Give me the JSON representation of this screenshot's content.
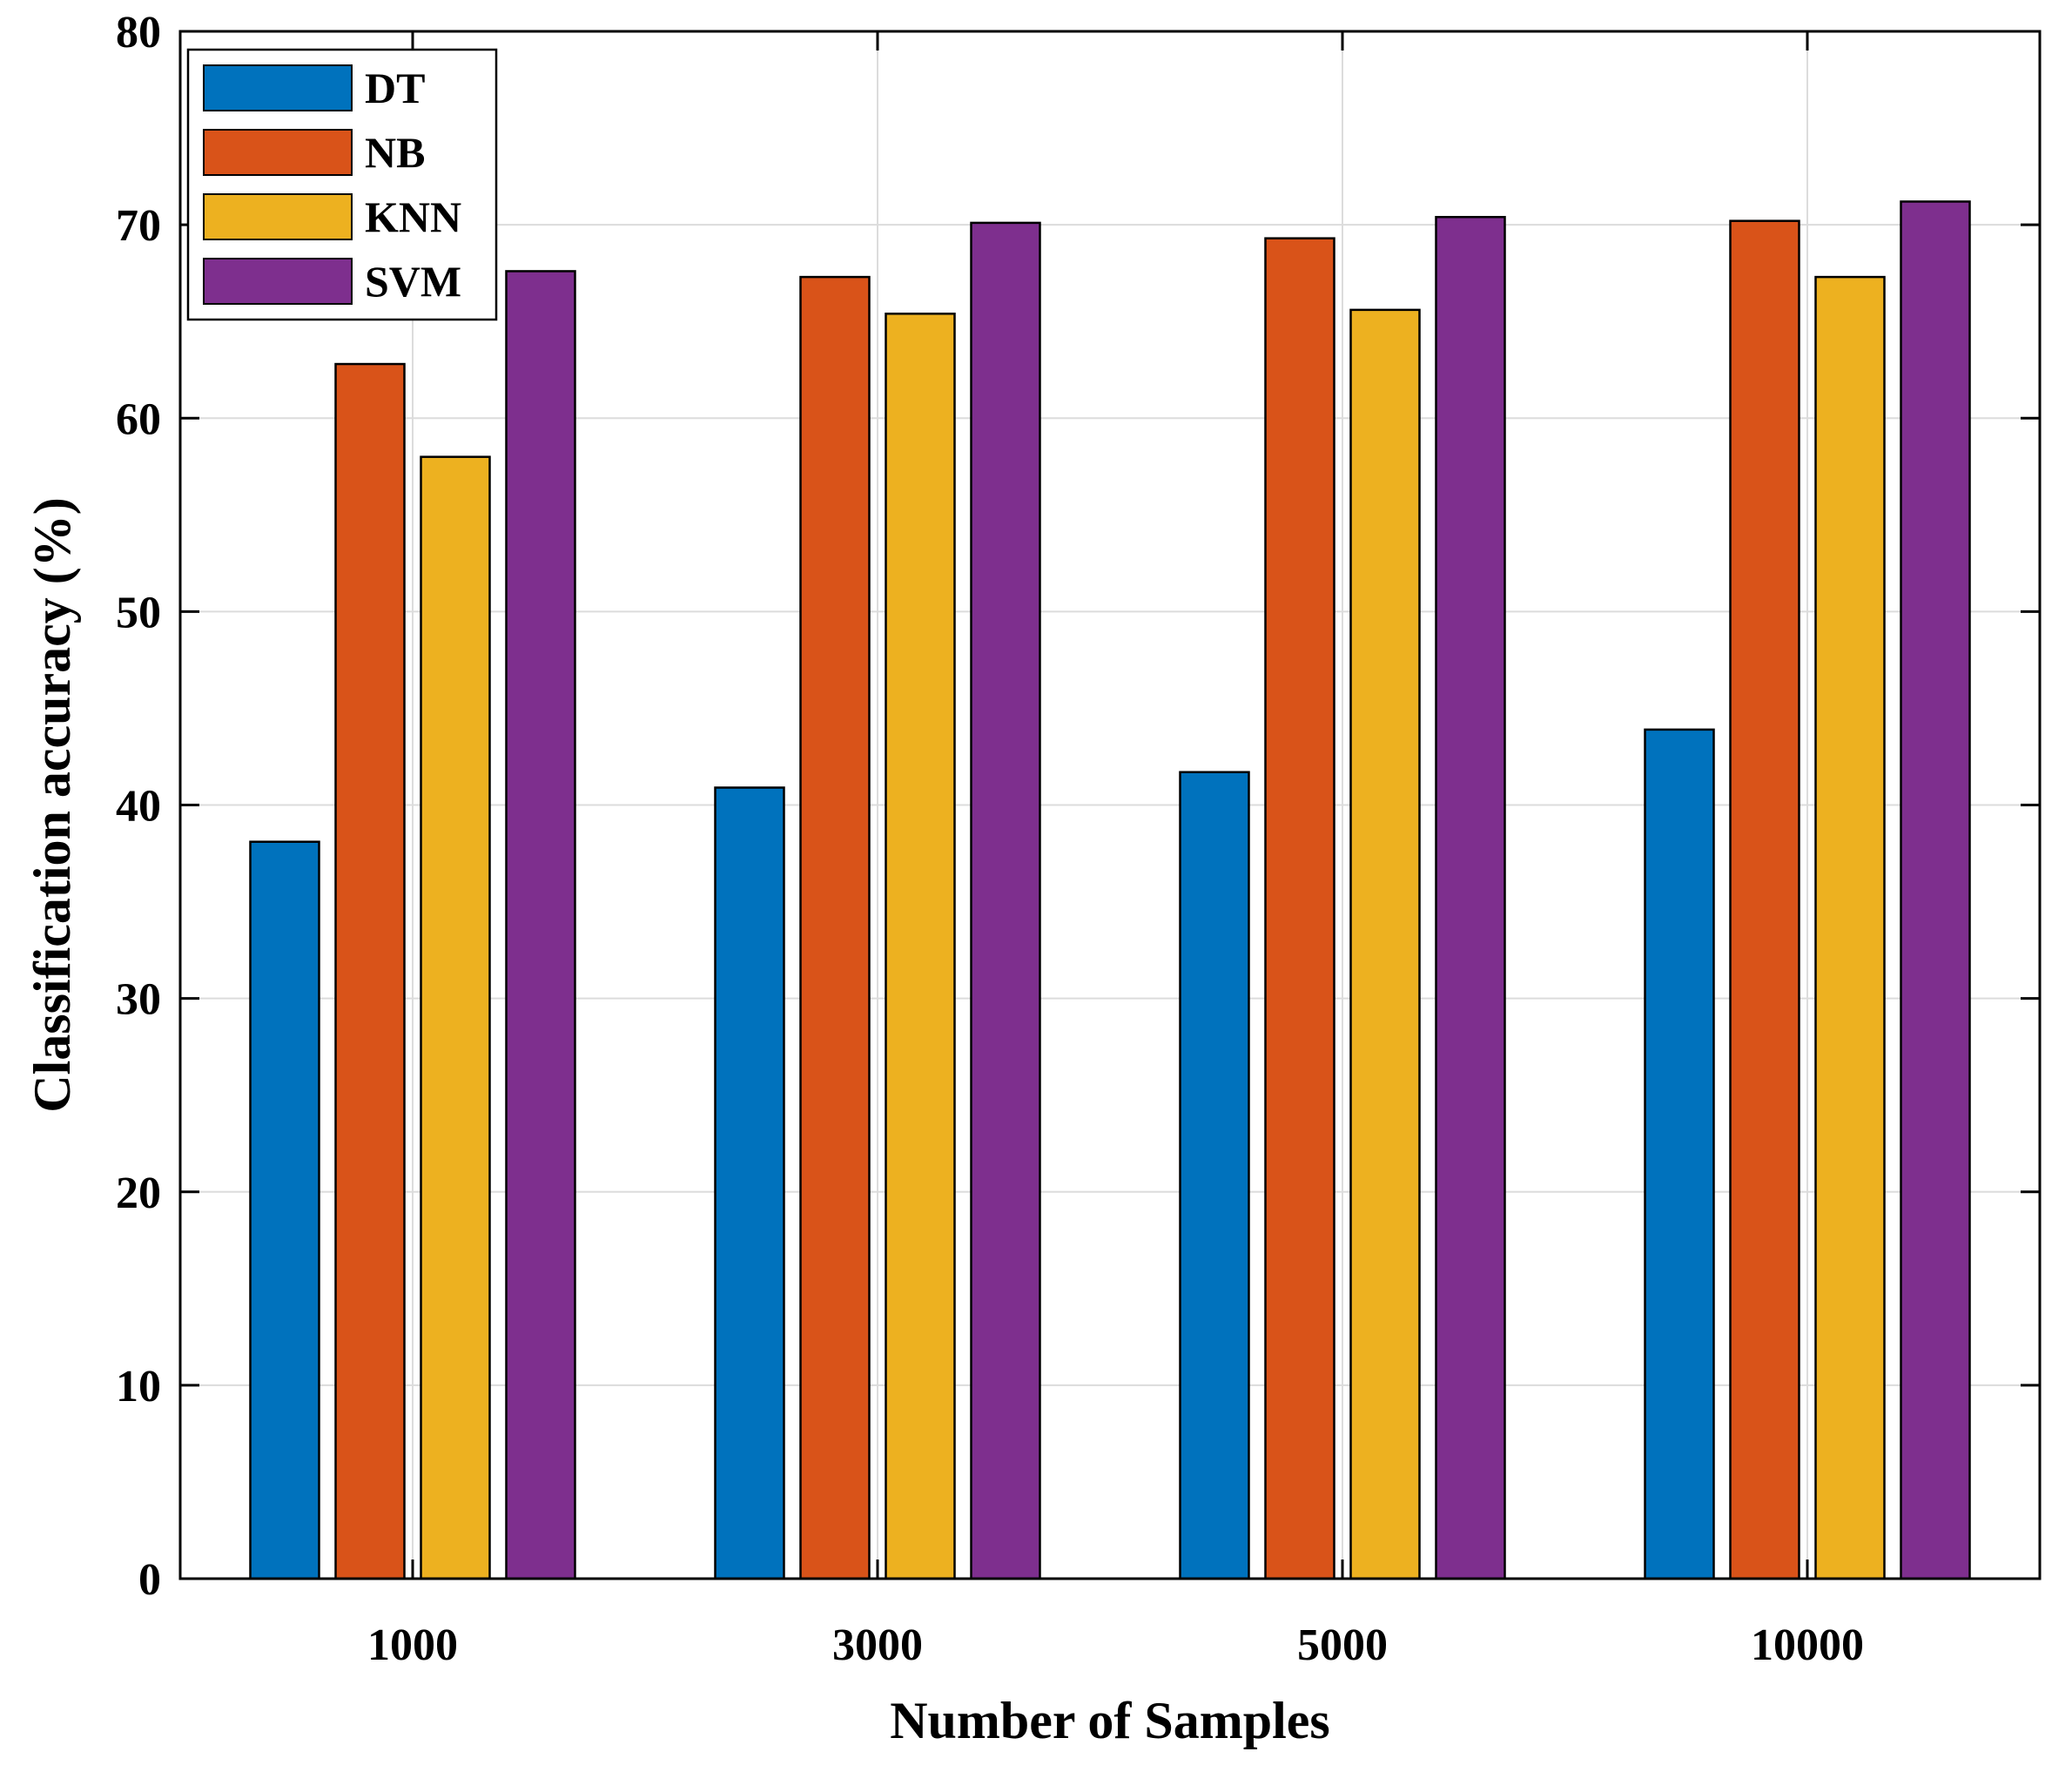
{
  "chart_data": {
    "type": "bar",
    "title": "",
    "xlabel": "Number of Samples",
    "ylabel": "Classification accuracy (%)",
    "categories": [
      "1000",
      "3000",
      "5000",
      "10000"
    ],
    "ylim": [
      0,
      80
    ],
    "yticks": [
      0,
      10,
      20,
      30,
      40,
      50,
      60,
      70,
      80
    ],
    "ytick_labels": [
      "0",
      "10",
      "20",
      "30",
      "40",
      "50",
      "60",
      "70",
      "80"
    ],
    "grid": true,
    "legend_position": "top-left",
    "series": [
      {
        "name": "DT",
        "color": "#0072BD",
        "values": [
          38.1,
          40.9,
          41.7,
          43.9
        ]
      },
      {
        "name": "NB",
        "color": "#D95319",
        "values": [
          62.8,
          67.3,
          69.3,
          70.2
        ]
      },
      {
        "name": "KNN",
        "color": "#EDB120",
        "values": [
          58.0,
          65.4,
          65.6,
          67.3
        ]
      },
      {
        "name": "SVM",
        "color": "#7E2F8E",
        "values": [
          67.6,
          70.1,
          70.4,
          71.2
        ]
      }
    ]
  }
}
